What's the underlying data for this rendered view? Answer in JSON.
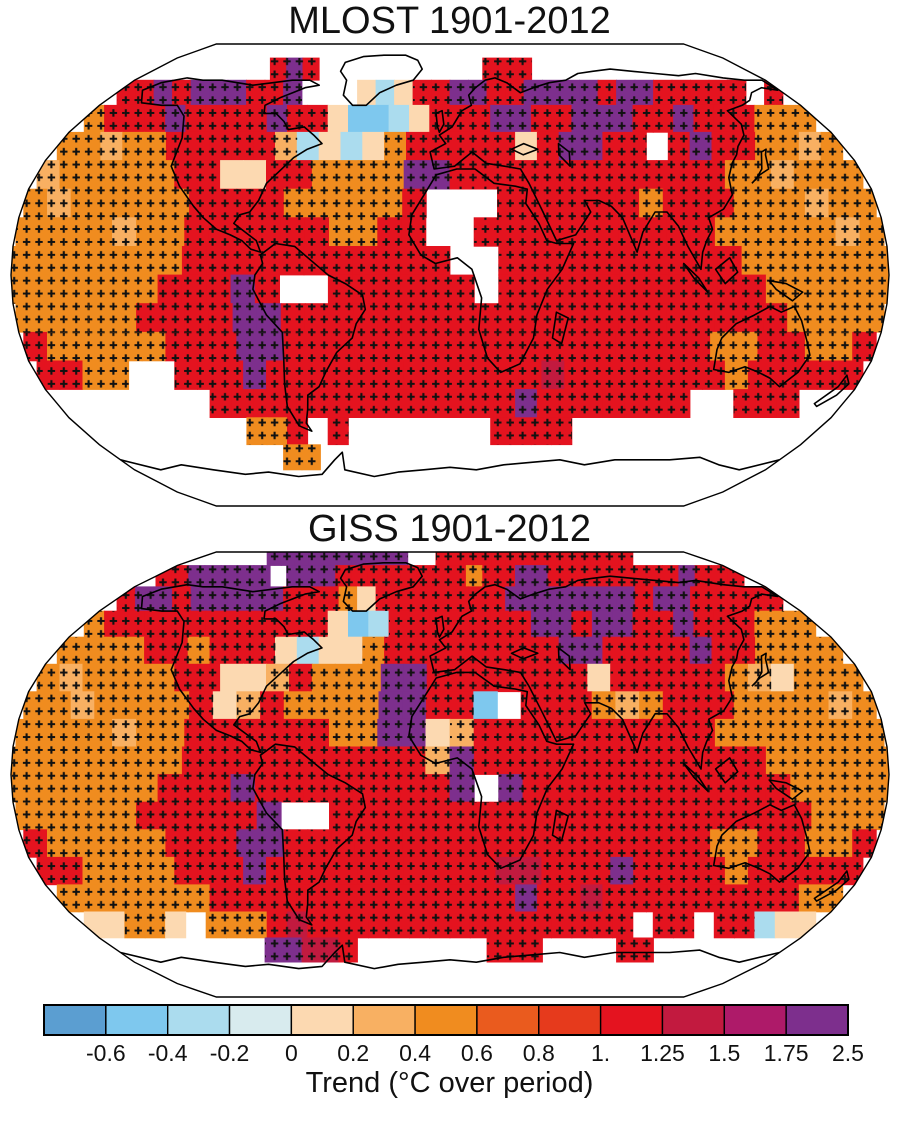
{
  "chart_data": {
    "type": "heatmap",
    "description": "Two world maps (Robinson projection) of observed surface temperature trend, with + hatching over grid cells; shared discrete colorbar below",
    "maps": [
      {
        "title": "MLOST 1901-2012",
        "dataset": "MLOST",
        "period": "1901-2012",
        "grid": [
          "....................................",
          ".......jmj..........jjj.............",
          "jjmjmmmjjm...ecejjmmjjmmmmjmmjjjjj.j",
          "gjjjmjjjjmjjebbcejjjmmjjmmmjjmjjjggg",
          "ggfggjjjjjfcecegjjjjjejmmjj.jmjjggfg",
          "fgggggjjeejjggggmmjjjjjjjjjjjjggfggg",
          "gfgggggjjjjgggggj...jjjjjjgjjjgggfgg",
          "ggggfggjjjjjjggjj..jjjjjjjjjjgggggfg",
          "gggggggjjjjjjjjjjj..jjjjjjjjjjgggggg",
          "ggggggjjjmj..jjjjjj.jjjjjjjjjjjggggg",
          "gggggjjjjmmjjjjjjjjjjjjjjjjjjjjjgggg",
          "jgggggjjjmmjjjjjjjjjjjjjjjjjjggjjggj",
          "jjgg..jjjmjjjjjjjjjjjjkjjjjjjjgjjjjj",
          ".......jjjjjjjjjjjjjjmjjjjjjj..jjj..",
          "........ggj.j.......jjjj............",
          ".........gg.........................",
          "....................................",
          "...................................."
        ]
      },
      {
        "title": "GISS 1901-2012",
        "dataset": "GISS",
        "period": "1901-2012",
        "grid": [
          ".....mmmmmmmmmm..jjjjjjjjjjjjjj.....",
          "jjmmmmm.mmmjjjjjjjjgjjmmjjjjjjjjmjjj",
          "jmmjmmmmmjjjgejjjjjjjmmmmmmmjmmjjjjj",
          "gjjjjjjjjjjjebcjjjjjjjmmjmmjjmjjjggg",
          "ggggjjgjjjeceegjjjjjjjjmmjjjjmjjgggg",
          "gfggggjjeefjgggmmjjjjjjjejjjjjgfeggg",
          "ggfggggjefjggggmmjjb.jjjgfgjjjggggfg",
          "ggggfggjjjjjjggmmefjjjjjjjjjjggggggg",
          "gggggggjjjjjjjjjjfmjjjjjjjjjjjjggggg",
          "ggggggjjjmjjjjjjjjm.mjjjjjjjjjjjgggg",
          "gggggjjjjjm..jjjjjjjjjjjjjjjjjjjjggg",
          "jgggggjjjmmjjjjjjjjjjjjjjjjjjggjjggj",
          "jjggggjjjmjjjjjjjjjjkkjjjmjjjjgjjjjj",
          "gggggggjjjjjjjjjjjjjjmjjkjjjjjjjjjgg",
          "eegge.gggjkjjjjjjjjjjjjjjjj.jj.jjcee",
          "........mmkkj.......jjj....jj.......",
          "....................................",
          "...................................."
        ]
      }
    ],
    "grid_encoding": {
      "rows": "18 latitude bands of 10 degrees, listed north to south (90N to 90S)",
      "cols": "36 longitude bands of 10 degrees, listed west to east (180W to 180E)",
      "no_data_char": ".",
      "symbols": {
        "a": "< -0.6",
        "b": "-0.6 to -0.4",
        "c": "-0.4 to -0.2",
        "d": "-0.2 to 0",
        "e": "0 to 0.2",
        "f": "0.2 to 0.4",
        "g": "0.4 to 0.6",
        "h": "0.6 to 0.8",
        "i": "0.8 to 1.0",
        "j": "1.0 to 1.25",
        "k": "1.25 to 1.5",
        "l": "1.5 to 1.75",
        "m": "1.75 to 2.5"
      }
    },
    "hatch_symbols": "fghijklm",
    "hatching_mark": "+",
    "colorbar": {
      "label": "Trend (°C over period)",
      "tick_labels": [
        "-0.6",
        "-0.4",
        "-0.2",
        "0",
        "0.2",
        "0.4",
        "0.6",
        "0.8",
        "1.",
        "1.25",
        "1.5",
        "1.75",
        "2.5"
      ],
      "segment_colors": [
        "#5b9ed1",
        "#7ec8ee",
        "#abdcee",
        "#d8ebee",
        "#fcd9b1",
        "#f8b062",
        "#f08c1f",
        "#ea5b1e",
        "#e63a1c",
        "#e4131f",
        "#c21a3f",
        "#ae1a69",
        "#7d2f8d"
      ],
      "symbol_order": "abcdefghijklm",
      "legend_position": "bottom"
    }
  }
}
